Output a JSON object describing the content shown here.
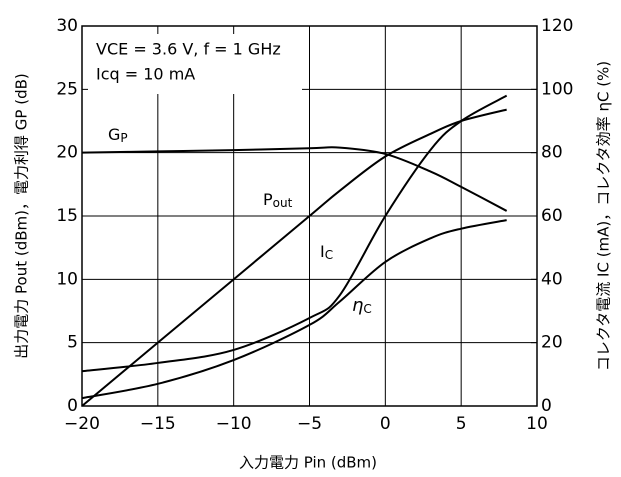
{
  "chart_data": {
    "type": "line",
    "x_label": "入力電力 Pin (dBm)",
    "y_label": "出力電力 Pout (dBm)，電力利得 GP (dB)",
    "y2_label": "コレクタ電流 IC (mA)，コレクタ効率 ηC (%)",
    "annotations": [
      "VCE = 3.6 V, f = 1 GHz",
      "Icq = 10 mA"
    ],
    "x": [
      -20,
      -15,
      -10,
      -5,
      -3,
      0,
      3,
      5,
      8
    ],
    "series": [
      {
        "name": "GP",
        "color": "#000000",
        "values": [
          20.0,
          20.1,
          20.2,
          20.35,
          20.4,
          19.9,
          18.5,
          17.3,
          15.4
        ]
      },
      {
        "name": "Pout",
        "color": "#000000",
        "values": [
          0,
          5,
          10,
          15,
          17,
          19.7,
          21.5,
          22.5,
          23.4
        ]
      },
      {
        "name": "IC",
        "color": "#000000",
        "axis": "y2",
        "values": [
          11,
          13.6,
          17.7,
          27.8,
          35,
          60,
          81,
          90,
          98
        ]
      },
      {
        "name": "ηC",
        "color": "#000000",
        "axis": "y2",
        "values": [
          2.5,
          7,
          14.5,
          25.6,
          33,
          45.5,
          53,
          56,
          58.7
        ]
      }
    ],
    "xlim": [
      -20,
      10
    ],
    "xticks": [
      {
        "value": -20,
        "label": "−20"
      },
      {
        "value": -15,
        "label": "−15"
      },
      {
        "value": -10,
        "label": "−10"
      },
      {
        "value": -5,
        "label": "−5"
      },
      0,
      5,
      10
    ],
    "ylim": [
      0,
      30
    ],
    "yticks": [
      0,
      5,
      10,
      15,
      20,
      25,
      30
    ],
    "y2lim": [
      0,
      120
    ],
    "y2ticks": [
      0,
      20,
      40,
      60,
      80,
      100,
      120
    ],
    "grid": true
  }
}
